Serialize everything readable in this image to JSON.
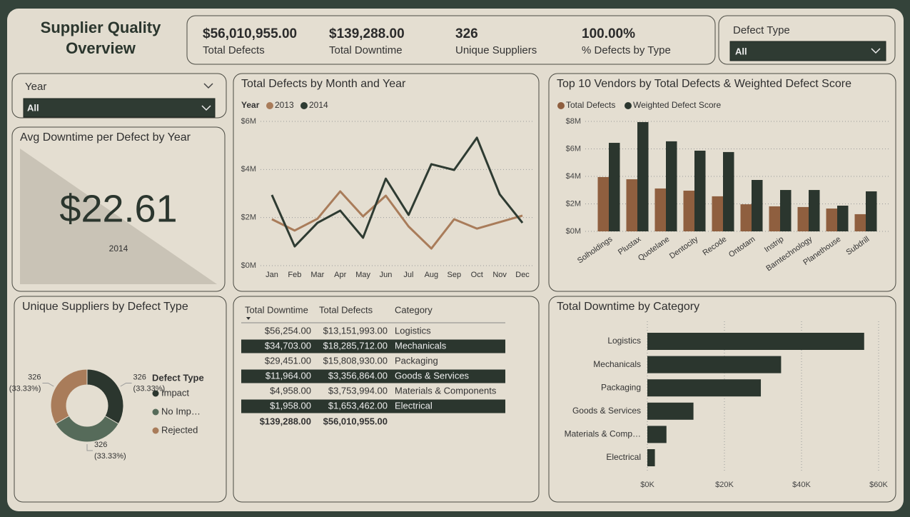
{
  "header": {
    "title": "Supplier Quality Overview"
  },
  "kpis": [
    {
      "value": "$56,010,955.00",
      "label": "Total Defects"
    },
    {
      "value": "$139,288.00",
      "label": "Total Downtime"
    },
    {
      "value": "326",
      "label": "Unique Suppliers"
    },
    {
      "value": "100.00%",
      "label": "% Defects by Type"
    }
  ],
  "slicers": {
    "defect_type": {
      "title": "Defect Type",
      "selected": "All"
    },
    "year": {
      "title": "Year",
      "selected": "All"
    }
  },
  "card": {
    "title": "Avg Downtime per Defect by Year",
    "value": "$22.61",
    "label": "2014"
  },
  "chart_data": [
    {
      "type": "line",
      "title": "Total Defects by Month and Year",
      "legend_title": "Year",
      "categories": [
        "Jan",
        "Feb",
        "Mar",
        "Apr",
        "May",
        "Jun",
        "Jul",
        "Aug",
        "Sep",
        "Oct",
        "Nov",
        "Dec"
      ],
      "series": [
        {
          "name": "2013",
          "color": "#a97c5a",
          "values": [
            1930000,
            1460000,
            1950000,
            3090000,
            2050000,
            2910000,
            1630000,
            710000,
            1930000,
            1540000,
            1810000,
            2080000
          ]
        },
        {
          "name": "2014",
          "color": "#2e3b32",
          "values": [
            2940000,
            800000,
            1780000,
            2290000,
            1160000,
            3620000,
            2110000,
            4220000,
            3980000,
            5320000,
            2970000,
            1780000
          ]
        }
      ],
      "ylim": [
        0,
        6000000
      ],
      "yticks": [
        {
          "value": 0,
          "label": "$0M"
        },
        {
          "value": 2000000,
          "label": "$2M"
        },
        {
          "value": 4000000,
          "label": "$4M"
        },
        {
          "value": 6000000,
          "label": "$6M"
        }
      ],
      "grid": true
    },
    {
      "type": "bar",
      "title": "Top 10 Vendors by Total Defects & Weighted Defect Score",
      "categories": [
        "Solholdings",
        "Plustax",
        "Quotelane",
        "Dentocity",
        "Recode",
        "Ontotam",
        "Instrip",
        "Bamtechnology",
        "Planethouse",
        "Subdrill"
      ],
      "series": [
        {
          "name": "Total Defects",
          "color": "#8f5f3f",
          "values": [
            3950000,
            3790000,
            3120000,
            2960000,
            2550000,
            1970000,
            1820000,
            1770000,
            1660000,
            1250000
          ]
        },
        {
          "name": "Weighted Defect Score",
          "color": "#2b362e",
          "values": [
            6440000,
            7950000,
            6550000,
            5870000,
            5770000,
            3740000,
            3010000,
            3010000,
            1870000,
            2910000
          ]
        }
      ],
      "ylim": [
        0,
        8000000
      ],
      "yticks": [
        {
          "value": 0,
          "label": "$0M"
        },
        {
          "value": 2000000,
          "label": "$2M"
        },
        {
          "value": 4000000,
          "label": "$4M"
        },
        {
          "value": 6000000,
          "label": "$6M"
        },
        {
          "value": 8000000,
          "label": "$8M"
        }
      ],
      "grid": true
    },
    {
      "type": "pie",
      "donut": true,
      "title": "Unique Suppliers by Defect Type",
      "legend_title": "Defect Type",
      "categories": [
        "Impact",
        "No Imp…",
        "Rejected"
      ],
      "values": [
        326,
        326,
        326
      ],
      "percent_labels": [
        "(33.33%)",
        "(33.33%)",
        "(33.33%)"
      ],
      "colors": [
        "#2b362e",
        "#566b5a",
        "#a97c5a"
      ]
    },
    {
      "type": "barh",
      "title": "Total Downtime by Category",
      "categories": [
        "Logistics",
        "Mechanicals",
        "Packaging",
        "Goods & Services",
        "Materials & Comp…",
        "Electrical"
      ],
      "values": [
        56254,
        34703,
        29451,
        11964,
        4958,
        1958
      ],
      "color": "#2b362e",
      "xlim": [
        0,
        60000
      ],
      "xticks": [
        {
          "value": 0,
          "label": "$0K"
        },
        {
          "value": 20000,
          "label": "$20K"
        },
        {
          "value": 40000,
          "label": "$40K"
        },
        {
          "value": 60000,
          "label": "$60K"
        }
      ],
      "grid": true
    }
  ],
  "table": {
    "columns": [
      "Total Downtime",
      "Total Defects",
      "Category"
    ],
    "rows": [
      [
        "$56,254.00",
        "$13,151,993.00",
        "Logistics"
      ],
      [
        "$34,703.00",
        "$18,285,712.00",
        "Mechanicals"
      ],
      [
        "$29,451.00",
        "$15,808,930.00",
        "Packaging"
      ],
      [
        "$11,964.00",
        "$3,356,864.00",
        "Goods & Services"
      ],
      [
        "$4,958.00",
        "$3,753,994.00",
        "Materials & Components"
      ],
      [
        "$1,958.00",
        "$1,653,462.00",
        "Electrical"
      ]
    ],
    "total": [
      "$139,288.00",
      "$56,010,955.00"
    ]
  }
}
